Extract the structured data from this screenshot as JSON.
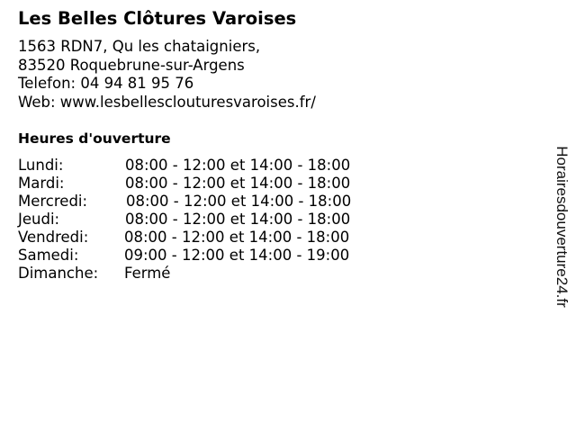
{
  "business": {
    "name": "Les Belles Clôtures Varoises",
    "address_line1": "1563 RDN7, Qu les chataigniers,",
    "address_line2": "83520 Roquebrune-sur-Argens",
    "phone": "Telefon: 04 94 81 95 76",
    "web": "Web: www.lesbellesclouturesvaroises.fr/"
  },
  "hours": {
    "heading": "Heures d'ouverture",
    "days": [
      {
        "day": "Lundi:",
        "time": "08:00 - 12:00 et 14:00 - 18:00"
      },
      {
        "day": "Mardi:",
        "time": "08:00 - 12:00 et 14:00 - 18:00"
      },
      {
        "day": "Mercredi:",
        "time": "08:00 - 12:00 et 14:00 - 18:00"
      },
      {
        "day": "Jeudi:",
        "time": "08:00 - 12:00 et 14:00 - 18:00"
      },
      {
        "day": "Vendredi:",
        "time": "08:00 - 12:00 et 14:00 - 18:00"
      },
      {
        "day": "Samedi:",
        "time": "09:00 - 12:00 et 14:00 - 19:00"
      },
      {
        "day": "Dimanche:",
        "time": "Fermé"
      }
    ]
  },
  "watermark": "Horairesdouverture24.fr"
}
